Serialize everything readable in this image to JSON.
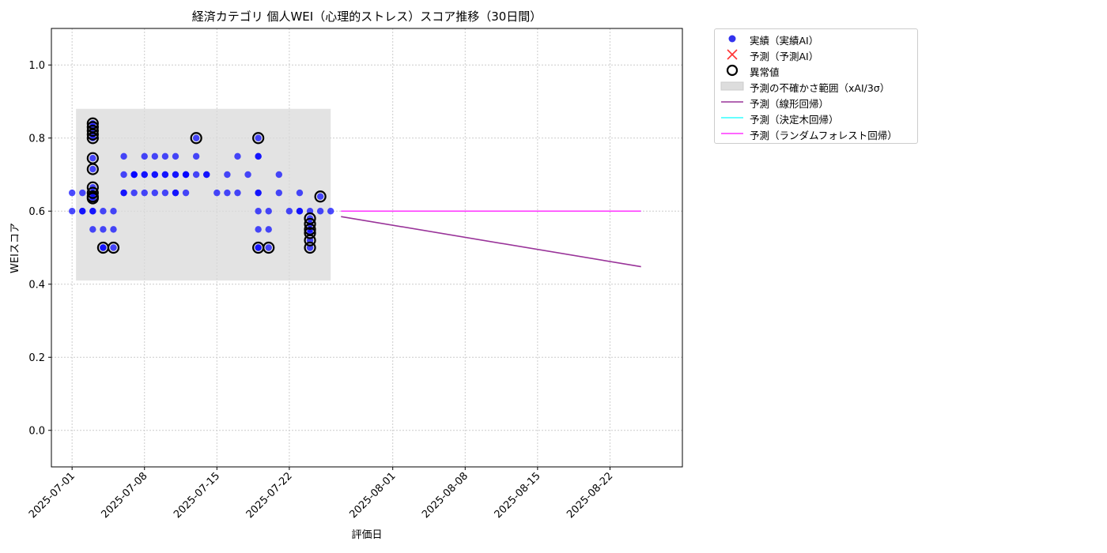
{
  "chart_data": {
    "type": "scatter",
    "title": "経済カテゴリ 個人WEI（心理的ストレス）スコア推移（30日間）",
    "xlabel": "評価日",
    "ylabel": "WEIスコア",
    "xlim": [
      "2025-06-29",
      "2025-08-29"
    ],
    "ylim": [
      -0.1,
      1.1
    ],
    "grid": true,
    "legend_position": "outside-top-right",
    "x_ticks": [
      "2025-07-01",
      "2025-07-08",
      "2025-07-15",
      "2025-07-22",
      "2025-08-01",
      "2025-08-08",
      "2025-08-15",
      "2025-08-22"
    ],
    "y_ticks": [
      0.0,
      0.2,
      0.4,
      0.6,
      0.8,
      1.0
    ],
    "y_tick_labels": [
      "0.0",
      "0.2",
      "0.4",
      "0.6",
      "0.8",
      "1.0"
    ],
    "series": [
      {
        "name": "実績（実績AI）",
        "kind": "scatter",
        "color": "#0000ff",
        "points": [
          [
            "2025-07-01",
            0.65
          ],
          [
            "2025-07-01",
            0.6
          ],
          [
            "2025-07-02",
            0.65
          ],
          [
            "2025-07-02",
            0.6
          ],
          [
            "2025-07-02",
            0.6
          ],
          [
            "2025-07-03",
            0.6
          ],
          [
            "2025-07-03",
            0.55
          ],
          [
            "2025-07-03",
            0.6
          ],
          [
            "2025-07-03",
            0.84
          ],
          [
            "2025-07-03",
            0.83
          ],
          [
            "2025-07-03",
            0.82
          ],
          [
            "2025-07-03",
            0.81
          ],
          [
            "2025-07-03",
            0.8
          ],
          [
            "2025-07-03",
            0.745
          ],
          [
            "2025-07-03",
            0.715
          ],
          [
            "2025-07-03",
            0.665
          ],
          [
            "2025-07-03",
            0.65
          ],
          [
            "2025-07-03",
            0.64
          ],
          [
            "2025-07-03",
            0.635
          ],
          [
            "2025-07-04",
            0.55
          ],
          [
            "2025-07-04",
            0.5
          ],
          [
            "2025-07-04",
            0.6
          ],
          [
            "2025-07-04",
            0.5
          ],
          [
            "2025-07-05",
            0.5
          ],
          [
            "2025-07-05",
            0.55
          ],
          [
            "2025-07-05",
            0.6
          ],
          [
            "2025-07-06",
            0.65
          ],
          [
            "2025-07-06",
            0.65
          ],
          [
            "2025-07-06",
            0.7
          ],
          [
            "2025-07-06",
            0.75
          ],
          [
            "2025-07-07",
            0.7
          ],
          [
            "2025-07-07",
            0.7
          ],
          [
            "2025-07-07",
            0.65
          ],
          [
            "2025-07-07",
            0.7
          ],
          [
            "2025-07-08",
            0.65
          ],
          [
            "2025-07-08",
            0.7
          ],
          [
            "2025-07-08",
            0.7
          ],
          [
            "2025-07-08",
            0.75
          ],
          [
            "2025-07-09",
            0.65
          ],
          [
            "2025-07-09",
            0.7
          ],
          [
            "2025-07-09",
            0.75
          ],
          [
            "2025-07-09",
            0.7
          ],
          [
            "2025-07-10",
            0.65
          ],
          [
            "2025-07-10",
            0.7
          ],
          [
            "2025-07-10",
            0.75
          ],
          [
            "2025-07-10",
            0.7
          ],
          [
            "2025-07-11",
            0.65
          ],
          [
            "2025-07-11",
            0.7
          ],
          [
            "2025-07-11",
            0.65
          ],
          [
            "2025-07-11",
            0.7
          ],
          [
            "2025-07-11",
            0.75
          ],
          [
            "2025-07-12",
            0.7
          ],
          [
            "2025-07-12",
            0.7
          ],
          [
            "2025-07-12",
            0.7
          ],
          [
            "2025-07-12",
            0.65
          ],
          [
            "2025-07-13",
            0.75
          ],
          [
            "2025-07-13",
            0.7
          ],
          [
            "2025-07-13",
            0.8
          ],
          [
            "2025-07-14",
            0.7
          ],
          [
            "2025-07-14",
            0.7
          ],
          [
            "2025-07-15",
            0.65
          ],
          [
            "2025-07-16",
            0.7
          ],
          [
            "2025-07-16",
            0.65
          ],
          [
            "2025-07-17",
            0.75
          ],
          [
            "2025-07-17",
            0.65
          ],
          [
            "2025-07-18",
            0.7
          ],
          [
            "2025-07-19",
            0.8
          ],
          [
            "2025-07-19",
            0.75
          ],
          [
            "2025-07-19",
            0.65
          ],
          [
            "2025-07-19",
            0.5
          ],
          [
            "2025-07-19",
            0.6
          ],
          [
            "2025-07-19",
            0.55
          ],
          [
            "2025-07-19",
            0.5
          ],
          [
            "2025-07-19",
            0.65
          ],
          [
            "2025-07-19",
            0.75
          ],
          [
            "2025-07-20",
            0.6
          ],
          [
            "2025-07-20",
            0.5
          ],
          [
            "2025-07-20",
            0.55
          ],
          [
            "2025-07-21",
            0.7
          ],
          [
            "2025-07-21",
            0.65
          ],
          [
            "2025-07-22",
            0.6
          ],
          [
            "2025-07-23",
            0.65
          ],
          [
            "2025-07-23",
            0.6
          ],
          [
            "2025-07-23",
            0.6
          ],
          [
            "2025-07-24",
            0.6
          ],
          [
            "2025-07-24",
            0.58
          ],
          [
            "2025-07-24",
            0.565
          ],
          [
            "2025-07-24",
            0.55
          ],
          [
            "2025-07-24",
            0.54
          ],
          [
            "2025-07-24",
            0.52
          ],
          [
            "2025-07-24",
            0.5
          ],
          [
            "2025-07-25",
            0.64
          ],
          [
            "2025-07-25",
            0.6
          ],
          [
            "2025-07-26",
            0.6
          ]
        ]
      },
      {
        "name": "予測（予測AI）",
        "kind": "scatter",
        "marker": "x",
        "color": "#ff3333",
        "points": []
      },
      {
        "name": "異常値",
        "kind": "outlier-ring",
        "color": "#000000",
        "points": [
          [
            "2025-07-03",
            0.84
          ],
          [
            "2025-07-03",
            0.83
          ],
          [
            "2025-07-03",
            0.82
          ],
          [
            "2025-07-03",
            0.81
          ],
          [
            "2025-07-03",
            0.8
          ],
          [
            "2025-07-03",
            0.745
          ],
          [
            "2025-07-03",
            0.715
          ],
          [
            "2025-07-03",
            0.665
          ],
          [
            "2025-07-03",
            0.65
          ],
          [
            "2025-07-03",
            0.64
          ],
          [
            "2025-07-03",
            0.635
          ],
          [
            "2025-07-04",
            0.5
          ],
          [
            "2025-07-05",
            0.5
          ],
          [
            "2025-07-13",
            0.8
          ],
          [
            "2025-07-19",
            0.8
          ],
          [
            "2025-07-19",
            0.5
          ],
          [
            "2025-07-20",
            0.5
          ],
          [
            "2025-07-24",
            0.58
          ],
          [
            "2025-07-24",
            0.565
          ],
          [
            "2025-07-24",
            0.55
          ],
          [
            "2025-07-24",
            0.54
          ],
          [
            "2025-07-24",
            0.52
          ],
          [
            "2025-07-24",
            0.5
          ],
          [
            "2025-07-25",
            0.64
          ]
        ]
      },
      {
        "name": "予測の不確かさ範囲（xAI/3σ）",
        "kind": "band",
        "color": "#d9d9d9",
        "x_range": [
          "2025-07-01",
          "2025-07-26"
        ],
        "y_range": [
          0.41,
          0.88
        ]
      },
      {
        "name": "予測（線形回帰）",
        "kind": "line",
        "color": "#993399",
        "points": [
          [
            "2025-07-27",
            0.585
          ],
          [
            "2025-08-25",
            0.448
          ]
        ]
      },
      {
        "name": "予測（決定木回帰）",
        "kind": "line",
        "color": "#33ffff",
        "points": [
          [
            "2025-07-27",
            0.6
          ],
          [
            "2025-08-25",
            0.6
          ]
        ]
      },
      {
        "name": "予測（ランダムフォレスト回帰）",
        "kind": "line",
        "color": "#ff33ff",
        "points": [
          [
            "2025-07-27",
            0.6
          ],
          [
            "2025-08-25",
            0.6
          ]
        ]
      }
    ]
  },
  "legend": {
    "items": [
      {
        "label": "実績（実績AI）",
        "type": "dot",
        "color": "#3333ee"
      },
      {
        "label": "予測（予測AI）",
        "type": "cross",
        "color": "#ff3333"
      },
      {
        "label": "異常値",
        "type": "ring",
        "color": "#000000"
      },
      {
        "label": "予測の不確かさ範囲（xAI/3σ）",
        "type": "patch",
        "color": "#dddddd"
      },
      {
        "label": "予測（線形回帰）",
        "type": "line",
        "color": "#993399"
      },
      {
        "label": "予測（決定木回帰）",
        "type": "line",
        "color": "#33ffff"
      },
      {
        "label": "予測（ランダムフォレスト回帰）",
        "type": "line",
        "color": "#ff33ff"
      }
    ]
  }
}
